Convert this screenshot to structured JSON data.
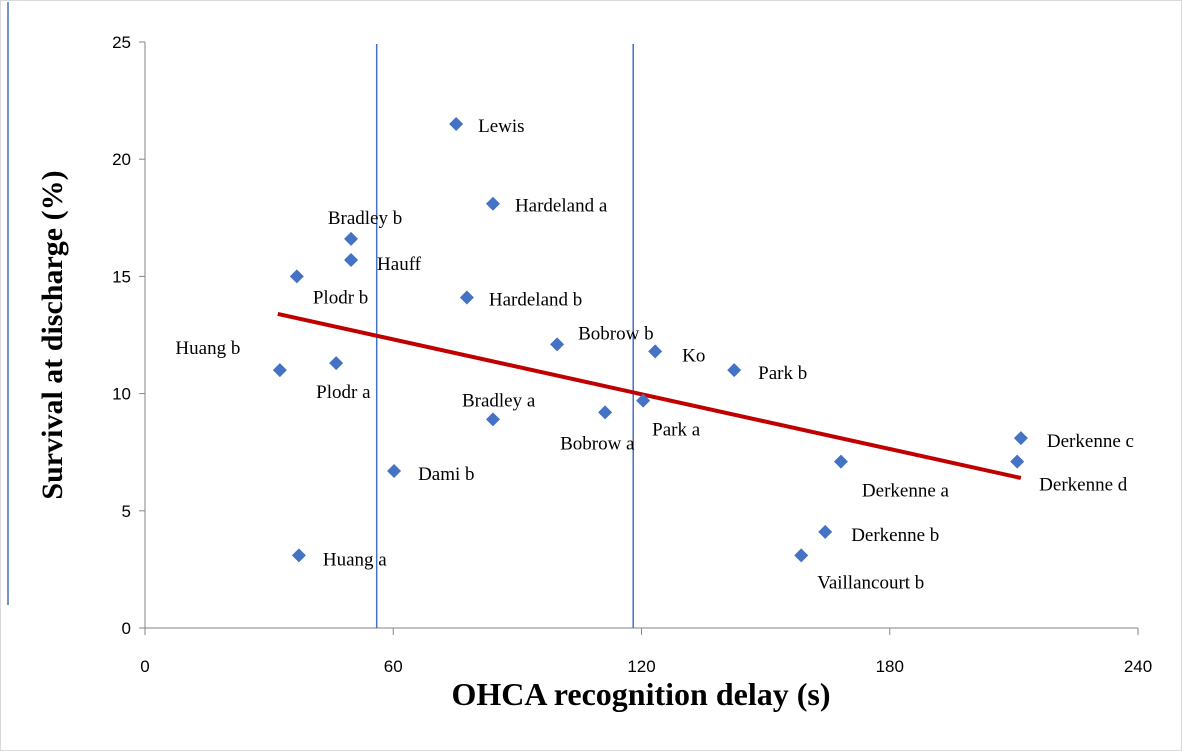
{
  "chart_data": {
    "type": "scatter",
    "x_label": "OHCA recognition delay (s)",
    "y_label": "Survival  at discharge (%)",
    "xlim": [
      0,
      240
    ],
    "xticks": [
      0,
      60,
      120,
      180,
      240
    ],
    "ylim": [
      0,
      25
    ],
    "yticks": [
      0,
      5,
      10,
      15,
      20,
      25
    ],
    "color": "#4472c4",
    "points": {
      "labels": [
        "Lewis",
        "Hardeland a",
        "Bradley  b",
        "Hauff",
        "Plodr b",
        "Hardeland b",
        "Bobrow b",
        "Ko",
        "Park b",
        "Huang b",
        "Plodr a",
        "Bradley  a",
        "Bobrow a",
        "Park a",
        "Dami b",
        "Derkenne c",
        "Derkenne d",
        "Derkenne a",
        "Derkenne b",
        "Vaillancourt  b",
        "Huang a"
      ],
      "x": [
        75.2,
        84.1,
        49.8,
        49.8,
        36.7,
        77.8,
        99.6,
        123.3,
        142.4,
        32.6,
        46.2,
        84.1,
        111.2,
        120.4,
        60.2,
        211.7,
        210.8,
        168.2,
        164.4,
        158.6,
        37.2
      ],
      "y": [
        21.5,
        18.1,
        16.6,
        15.7,
        15.0,
        14.1,
        12.1,
        11.8,
        11.0,
        11.0,
        11.3,
        8.9,
        9.2,
        9.7,
        6.7,
        8.1,
        7.1,
        7.1,
        4.1,
        3.1,
        3.1
      ]
    },
    "trend_line": {
      "color": "#c00000",
      "x": [
        32.1,
        211.7
      ],
      "y": [
        13.4,
        6.4
      ]
    },
    "reference_lines": {
      "color": "#4472c4",
      "x": [
        56,
        118
      ]
    }
  }
}
